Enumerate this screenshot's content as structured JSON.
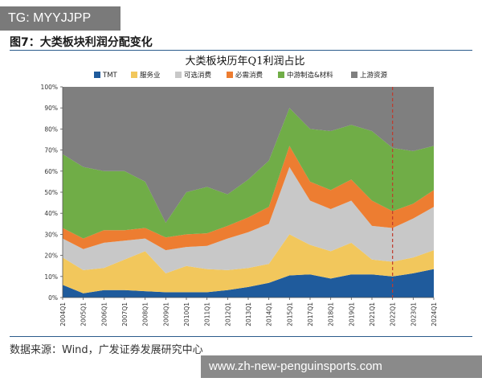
{
  "badge": {
    "text": "TG: MYYJJPP"
  },
  "figure": {
    "title": "图7：大类板块利润分配变化"
  },
  "source": {
    "text": "数据来源：Wind，广发证券发展研究中心"
  },
  "watermark": {
    "text": "www.zh-new-penguinsports.com"
  },
  "chart_data": {
    "type": "area",
    "stacked": true,
    "title": "大类板块历年Q1利润占比",
    "xlabel": "",
    "ylabel": "",
    "ylim": [
      0,
      100
    ],
    "y_ticks": [
      "0%",
      "10%",
      "20%",
      "30%",
      "40%",
      "50%",
      "60%",
      "70%",
      "80%",
      "90%",
      "100%"
    ],
    "categories": [
      "2004Q1",
      "2005Q1",
      "2006Q1",
      "2007Q1",
      "2008Q1",
      "2009Q1",
      "2010Q1",
      "2011Q1",
      "2012Q1",
      "2013Q1",
      "2014Q1",
      "2015Q1",
      "2017Q1",
      "2018Q1",
      "2019Q1",
      "2021Q1",
      "2022Q1",
      "2023Q1",
      "2024Q1"
    ],
    "legend_position": "top",
    "grid": false,
    "reference_line": {
      "at": "2022Q1",
      "style": "dashed",
      "color": "#c0392b"
    },
    "series": [
      {
        "name": "TMT",
        "color": "#1f5b9c",
        "values": [
          6,
          2,
          3.5,
          3.5,
          3,
          2.5,
          2.5,
          2.5,
          3.5,
          5,
          7,
          10.5,
          11,
          9,
          11,
          11,
          10,
          11.5,
          13.5
        ]
      },
      {
        "name": "服务业",
        "color": "#f2c75c",
        "values": [
          13,
          11,
          10.5,
          14.5,
          19,
          9,
          12.5,
          11,
          9.5,
          9,
          9,
          19.5,
          14,
          13,
          15,
          7,
          7,
          7.5,
          9
        ]
      },
      {
        "name": "可选消费",
        "color": "#c8c8c8",
        "values": [
          9,
          10,
          12,
          9,
          6,
          11,
          9,
          11,
          15,
          17,
          19,
          32,
          21,
          20,
          20,
          16,
          16,
          18.5,
          20.5
        ]
      },
      {
        "name": "必需消费",
        "color": "#ed7d31",
        "values": [
          5,
          5,
          6,
          5,
          5,
          6,
          6,
          6,
          6,
          7,
          8,
          10,
          9,
          9,
          10,
          12,
          8,
          7,
          8
        ]
      },
      {
        "name": "中游制造&材料",
        "color": "#70ad47",
        "values": [
          35,
          34,
          28,
          28,
          22,
          7,
          20,
          22,
          15,
          18,
          22,
          18,
          25,
          28,
          26,
          33,
          30,
          25,
          21
        ]
      },
      {
        "name": "上游资源",
        "color": "#7f7f7f",
        "values": [
          32,
          38,
          40,
          40,
          45,
          64.5,
          50,
          47.5,
          51,
          44,
          35,
          10,
          20,
          21,
          18,
          21,
          29,
          30.5,
          28
        ]
      }
    ]
  }
}
